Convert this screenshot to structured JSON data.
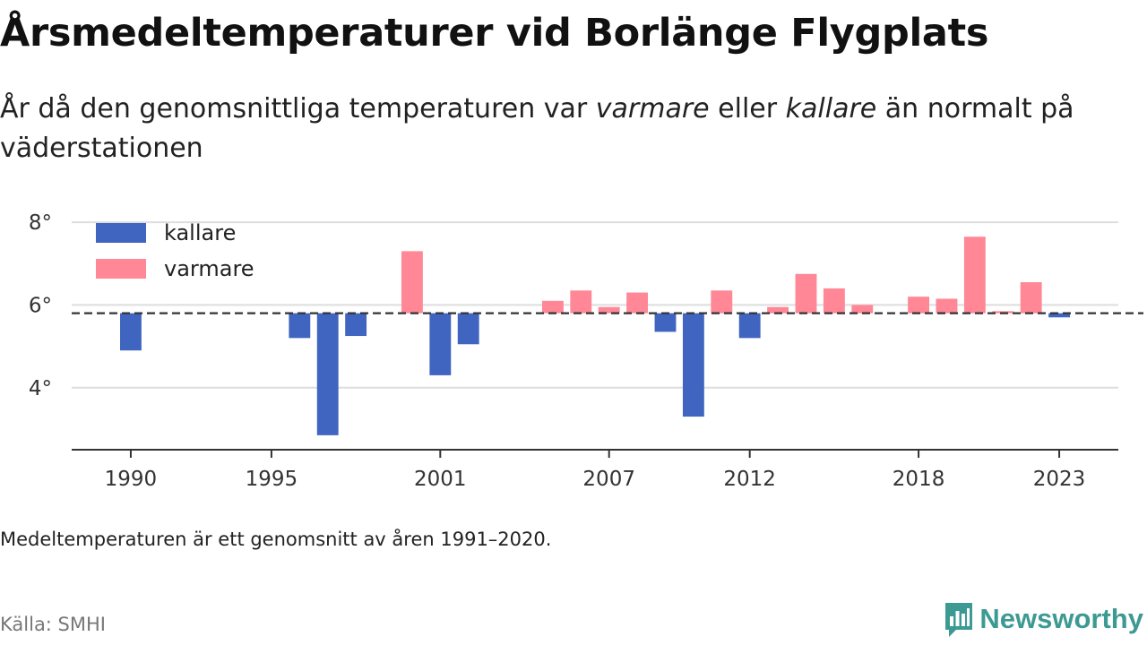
{
  "title": "Årsmedeltemperaturer vid Borlänge Flygplats",
  "subtitle": {
    "part1": "År då den genomsnittliga temperaturen var ",
    "em1": "varmare",
    "part2": " eller ",
    "em2": "kallare",
    "part3": " än normalt på väderstationen"
  },
  "note": "Medeltemperaturen är ett genomsnitt av åren 1991–2020.",
  "source": "Källa: SMHI",
  "brand": "Newsworthy",
  "colors": {
    "colder": "#4065c0",
    "warmer": "#ff8796",
    "grid": "#dddddd",
    "axis": "#333333",
    "brand": "#3d9a93"
  },
  "chart_data": {
    "type": "bar",
    "baseline": 5.8,
    "ylim": [
      2.5,
      8.5
    ],
    "xlim": [
      1987.9,
      2025.1
    ],
    "y_ticks": [
      {
        "value": 4,
        "label": "4°"
      },
      {
        "value": 6,
        "label": "6°"
      },
      {
        "value": 8,
        "label": "8°"
      }
    ],
    "x_ticks": [
      1990,
      1995,
      2001,
      2007,
      2012,
      2018,
      2023
    ],
    "legend": {
      "placement": "top-left",
      "items": [
        {
          "key": "colder",
          "label": "kallare"
        },
        {
          "key": "warmer",
          "label": "varmare"
        }
      ]
    },
    "data": [
      {
        "year": 1990,
        "value": 4.9
      },
      {
        "year": 1996,
        "value": 5.2
      },
      {
        "year": 1997,
        "value": 2.85
      },
      {
        "year": 1998,
        "value": 5.25
      },
      {
        "year": 2000,
        "value": 7.3
      },
      {
        "year": 2001,
        "value": 4.3
      },
      {
        "year": 2002,
        "value": 5.05
      },
      {
        "year": 2005,
        "value": 6.1
      },
      {
        "year": 2006,
        "value": 6.35
      },
      {
        "year": 2007,
        "value": 5.95
      },
      {
        "year": 2008,
        "value": 6.3
      },
      {
        "year": 2009,
        "value": 5.35
      },
      {
        "year": 2010,
        "value": 3.3
      },
      {
        "year": 2011,
        "value": 6.35
      },
      {
        "year": 2012,
        "value": 5.2
      },
      {
        "year": 2013,
        "value": 5.95
      },
      {
        "year": 2014,
        "value": 6.75
      },
      {
        "year": 2015,
        "value": 6.4
      },
      {
        "year": 2016,
        "value": 6.0
      },
      {
        "year": 2018,
        "value": 6.2
      },
      {
        "year": 2019,
        "value": 6.15
      },
      {
        "year": 2020,
        "value": 7.65
      },
      {
        "year": 2021,
        "value": 5.85
      },
      {
        "year": 2022,
        "value": 6.55
      },
      {
        "year": 2023,
        "value": 5.7
      }
    ]
  }
}
